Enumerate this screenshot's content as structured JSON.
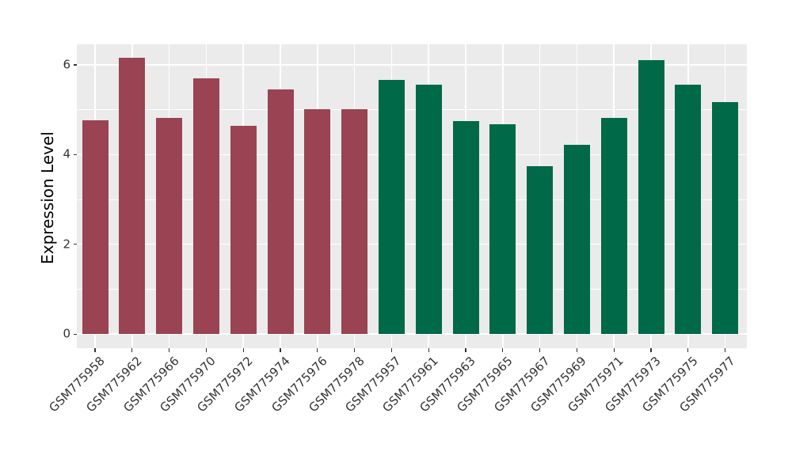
{
  "chart_data": {
    "type": "bar",
    "title": "",
    "xlabel": "",
    "ylabel": "Expression Level",
    "categories": [
      "GSM775958",
      "GSM775962",
      "GSM775966",
      "GSM775970",
      "GSM775972",
      "GSM775974",
      "GSM775976",
      "GSM775978",
      "GSM775957",
      "GSM775961",
      "GSM775963",
      "GSM775965",
      "GSM775967",
      "GSM775969",
      "GSM775971",
      "GSM775973",
      "GSM775975",
      "GSM775977"
    ],
    "values": [
      4.76,
      6.15,
      4.82,
      5.7,
      4.65,
      5.45,
      5.01,
      5.02,
      5.67,
      5.55,
      4.75,
      4.68,
      3.74,
      4.22,
      4.81,
      6.11,
      5.56,
      5.17
    ],
    "groups": [
      "A",
      "A",
      "A",
      "A",
      "A",
      "A",
      "A",
      "A",
      "B",
      "B",
      "B",
      "B",
      "B",
      "B",
      "B",
      "B",
      "B",
      "B"
    ],
    "group_colors": {
      "A": "#9A4352",
      "B": "#006948"
    },
    "yticks": [
      0,
      2,
      4,
      6
    ],
    "ytick_labels": [
      "0",
      "2",
      "4",
      "6"
    ],
    "minor_gridlines": [
      1,
      3,
      5
    ],
    "ylim": [
      0,
      6.46
    ],
    "grid": "on",
    "legend": "none",
    "panel_background": "#EBEBEB",
    "gridline_color": "#FFFFFF",
    "axis_text_color": "#333333"
  }
}
